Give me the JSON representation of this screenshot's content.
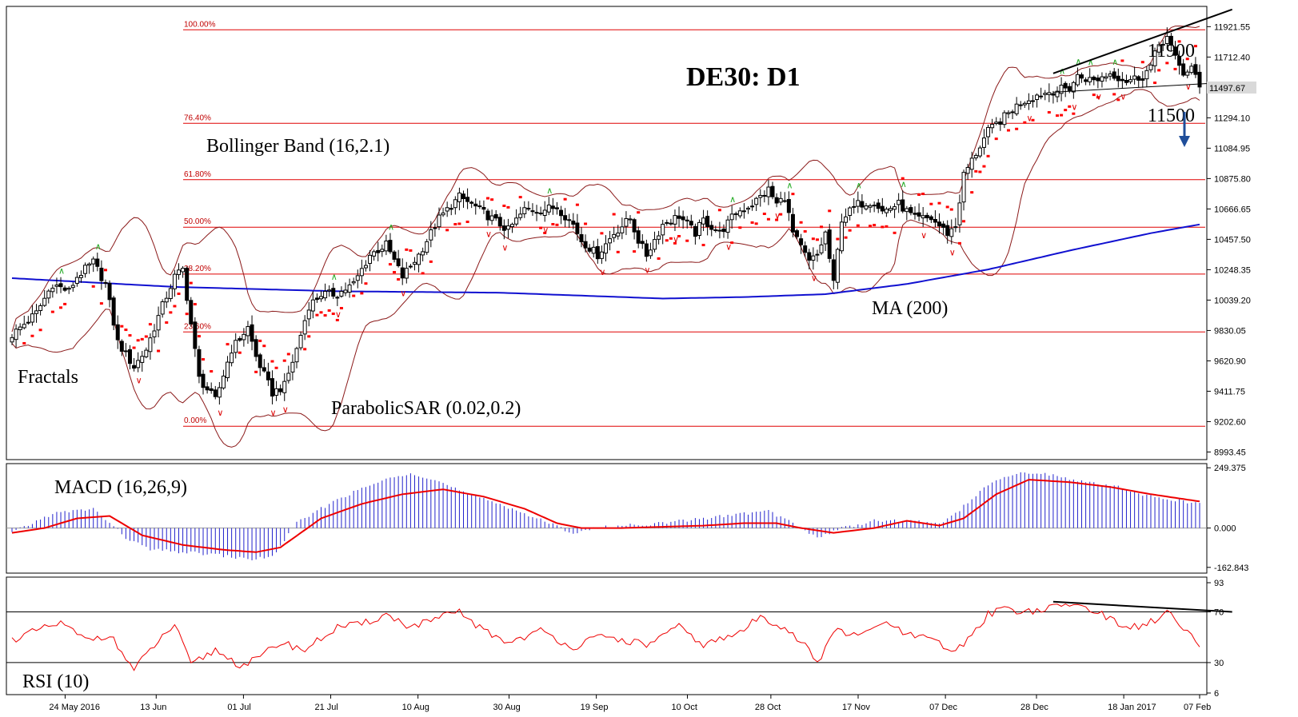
{
  "chart_data": [
    {
      "type": "candlestick",
      "title": "DE30: D1",
      "y_ticks": [
        "11921.55",
        "11712.40",
        "11294.10",
        "11084.95",
        "10875.80",
        "10666.65",
        "10457.50",
        "10248.35",
        "10039.20",
        "9830.05",
        "9620.90",
        "9411.75",
        "9202.60",
        "8993.45"
      ],
      "ylim": [
        8952,
        12050
      ],
      "current_price": "11497.67",
      "x_ticks": [
        "24 May 2016",
        "13 Jun",
        "01 Jul",
        "21 Jul",
        "10 Aug",
        "30 Aug",
        "19 Sep",
        "10 Oct",
        "28 Oct",
        "17 Nov",
        "07 Dec",
        "28 Dec",
        "18 Jan 2017",
        "07 Feb"
      ],
      "fibonacci": [
        {
          "label": "100.00%",
          "value": 11900
        },
        {
          "label": "76.40%",
          "value": 11256
        },
        {
          "label": "61.80%",
          "value": 10868
        },
        {
          "label": "50.00%",
          "value": 10541
        },
        {
          "label": "38.20%",
          "value": 10218
        },
        {
          "label": "23.60%",
          "value": 9820
        },
        {
          "label": "0.00%",
          "value": 9171
        }
      ],
      "indicator_labels": {
        "bollinger": "Bollinger Band (16,2.1)",
        "fractals": "Fractals",
        "parabolic_sar": "ParabolicSAR (0.02,0.2)",
        "ma": "MA (200)"
      },
      "levels": [
        {
          "label": "11900",
          "value": 11900
        },
        {
          "label": "11500",
          "value": 11500
        }
      ],
      "close_keyframes": [
        [
          0,
          9800
        ],
        [
          6,
          9950
        ],
        [
          10,
          10150
        ],
        [
          14,
          10100
        ],
        [
          16,
          10200
        ],
        [
          20,
          10300
        ],
        [
          23,
          10150
        ],
        [
          26,
          9750
        ],
        [
          30,
          9580
        ],
        [
          33,
          9700
        ],
        [
          37,
          10000
        ],
        [
          40,
          10200
        ],
        [
          42,
          10250
        ],
        [
          46,
          9500
        ],
        [
          50,
          9350
        ],
        [
          54,
          9700
        ],
        [
          58,
          9850
        ],
        [
          60,
          9650
        ],
        [
          64,
          9400
        ],
        [
          67,
          9450
        ],
        [
          70,
          9700
        ],
        [
          73,
          10000
        ],
        [
          76,
          10080
        ],
        [
          80,
          10080
        ],
        [
          84,
          10150
        ],
        [
          88,
          10350
        ],
        [
          92,
          10420
        ],
        [
          96,
          10200
        ],
        [
          100,
          10350
        ],
        [
          105,
          10600
        ],
        [
          110,
          10750
        ],
        [
          114,
          10680
        ],
        [
          118,
          10600
        ],
        [
          122,
          10520
        ],
        [
          126,
          10660
        ],
        [
          130,
          10660
        ],
        [
          134,
          10680
        ],
        [
          138,
          10560
        ],
        [
          140,
          10450
        ],
        [
          144,
          10350
        ],
        [
          148,
          10500
        ],
        [
          152,
          10600
        ],
        [
          154,
          10450
        ],
        [
          156,
          10350
        ],
        [
          160,
          10560
        ],
        [
          164,
          10620
        ],
        [
          168,
          10500
        ],
        [
          170,
          10590
        ],
        [
          174,
          10500
        ],
        [
          178,
          10640
        ],
        [
          182,
          10700
        ],
        [
          186,
          10800
        ],
        [
          188,
          10700
        ],
        [
          190,
          10750
        ],
        [
          192,
          10500
        ],
        [
          196,
          10300
        ],
        [
          198,
          10350
        ],
        [
          200,
          10500
        ],
        [
          202,
          10150
        ],
        [
          204,
          10600
        ],
        [
          208,
          10700
        ],
        [
          212,
          10720
        ],
        [
          214,
          10650
        ],
        [
          218,
          10700
        ],
        [
          222,
          10600
        ],
        [
          226,
          10600
        ],
        [
          230,
          10500
        ],
        [
          232,
          10550
        ],
        [
          234,
          10900
        ],
        [
          236,
          11000
        ],
        [
          240,
          11200
        ],
        [
          244,
          11300
        ],
        [
          248,
          11400
        ],
        [
          252,
          11450
        ],
        [
          256,
          11480
        ],
        [
          260,
          11500
        ],
        [
          262,
          11580
        ],
        [
          266,
          11550
        ],
        [
          270,
          11600
        ],
        [
          274,
          11550
        ],
        [
          278,
          11580
        ],
        [
          280,
          11650
        ],
        [
          282,
          11800
        ],
        [
          284,
          11850
        ],
        [
          286,
          11700
        ],
        [
          288,
          11600
        ],
        [
          290,
          11640
        ],
        [
          292,
          11500
        ]
      ],
      "ma200_keyframes": [
        [
          0,
          10190
        ],
        [
          40,
          10130
        ],
        [
          80,
          10100
        ],
        [
          120,
          10090
        ],
        [
          140,
          10070
        ],
        [
          160,
          10050
        ],
        [
          180,
          10060
        ],
        [
          200,
          10080
        ],
        [
          220,
          10150
        ],
        [
          240,
          10250
        ],
        [
          260,
          10380
        ],
        [
          280,
          10500
        ],
        [
          292,
          10560
        ]
      ],
      "annotations": [
        "11900",
        "11500"
      ]
    },
    {
      "type": "bar+line",
      "title": "MACD (16,26,9)",
      "y_ticks": [
        "249.375",
        "0.000",
        "-162.843"
      ],
      "ylim": [
        -180,
        260
      ],
      "hist_keyframes": [
        [
          0,
          -20
        ],
        [
          10,
          60
        ],
        [
          20,
          80
        ],
        [
          28,
          -40
        ],
        [
          34,
          -90
        ],
        [
          42,
          -100
        ],
        [
          50,
          -110
        ],
        [
          58,
          -130
        ],
        [
          64,
          -120
        ],
        [
          70,
          20
        ],
        [
          80,
          120
        ],
        [
          90,
          190
        ],
        [
          98,
          230
        ],
        [
          104,
          200
        ],
        [
          112,
          140
        ],
        [
          120,
          100
        ],
        [
          126,
          60
        ],
        [
          132,
          20
        ],
        [
          138,
          -20
        ],
        [
          144,
          0
        ],
        [
          150,
          10
        ],
        [
          160,
          20
        ],
        [
          170,
          40
        ],
        [
          180,
          60
        ],
        [
          186,
          70
        ],
        [
          192,
          20
        ],
        [
          198,
          -40
        ],
        [
          204,
          0
        ],
        [
          212,
          30
        ],
        [
          220,
          30
        ],
        [
          228,
          20
        ],
        [
          232,
          60
        ],
        [
          240,
          180
        ],
        [
          248,
          230
        ],
        [
          256,
          220
        ],
        [
          264,
          190
        ],
        [
          272,
          170
        ],
        [
          280,
          130
        ],
        [
          288,
          110
        ],
        [
          292,
          100
        ]
      ],
      "signal_keyframes": [
        [
          0,
          -20
        ],
        [
          8,
          0
        ],
        [
          16,
          40
        ],
        [
          24,
          50
        ],
        [
          32,
          -30
        ],
        [
          42,
          -70
        ],
        [
          52,
          -90
        ],
        [
          60,
          -100
        ],
        [
          66,
          -80
        ],
        [
          76,
          40
        ],
        [
          86,
          100
        ],
        [
          96,
          140
        ],
        [
          106,
          160
        ],
        [
          116,
          130
        ],
        [
          126,
          80
        ],
        [
          134,
          20
        ],
        [
          140,
          0
        ],
        [
          150,
          0
        ],
        [
          160,
          5
        ],
        [
          170,
          10
        ],
        [
          180,
          20
        ],
        [
          188,
          20
        ],
        [
          194,
          0
        ],
        [
          202,
          -20
        ],
        [
          212,
          0
        ],
        [
          220,
          30
        ],
        [
          228,
          10
        ],
        [
          234,
          40
        ],
        [
          242,
          140
        ],
        [
          250,
          200
        ],
        [
          260,
          190
        ],
        [
          270,
          170
        ],
        [
          280,
          140
        ],
        [
          292,
          110
        ]
      ]
    },
    {
      "type": "line",
      "title": "RSI (10)",
      "y_ticks": [
        "93",
        "70",
        "30",
        "6"
      ],
      "ylim": [
        6,
        93
      ],
      "rsi_keyframes": [
        [
          0,
          48
        ],
        [
          6,
          55
        ],
        [
          12,
          61
        ],
        [
          18,
          48
        ],
        [
          24,
          52
        ],
        [
          30,
          24
        ],
        [
          34,
          40
        ],
        [
          40,
          60
        ],
        [
          44,
          28
        ],
        [
          50,
          40
        ],
        [
          56,
          28
        ],
        [
          60,
          32
        ],
        [
          66,
          46
        ],
        [
          72,
          40
        ],
        [
          80,
          58
        ],
        [
          86,
          60
        ],
        [
          92,
          68
        ],
        [
          98,
          58
        ],
        [
          104,
          64
        ],
        [
          110,
          70
        ],
        [
          116,
          55
        ],
        [
          122,
          46
        ],
        [
          130,
          55
        ],
        [
          138,
          42
        ],
        [
          144,
          50
        ],
        [
          150,
          48
        ],
        [
          156,
          44
        ],
        [
          164,
          58
        ],
        [
          170,
          44
        ],
        [
          178,
          52
        ],
        [
          184,
          66
        ],
        [
          190,
          58
        ],
        [
          196,
          40
        ],
        [
          198,
          28
        ],
        [
          202,
          56
        ],
        [
          208,
          50
        ],
        [
          214,
          62
        ],
        [
          220,
          52
        ],
        [
          226,
          48
        ],
        [
          232,
          38
        ],
        [
          236,
          52
        ],
        [
          240,
          68
        ],
        [
          244,
          74
        ],
        [
          248,
          70
        ],
        [
          254,
          72
        ],
        [
          260,
          76
        ],
        [
          266,
          72
        ],
        [
          272,
          60
        ],
        [
          278,
          58
        ],
        [
          284,
          70
        ],
        [
          288,
          56
        ],
        [
          292,
          44
        ]
      ]
    }
  ],
  "trendlines": {
    "main_upper": "channel",
    "main_lower": "channel",
    "rsi": "divergence"
  }
}
